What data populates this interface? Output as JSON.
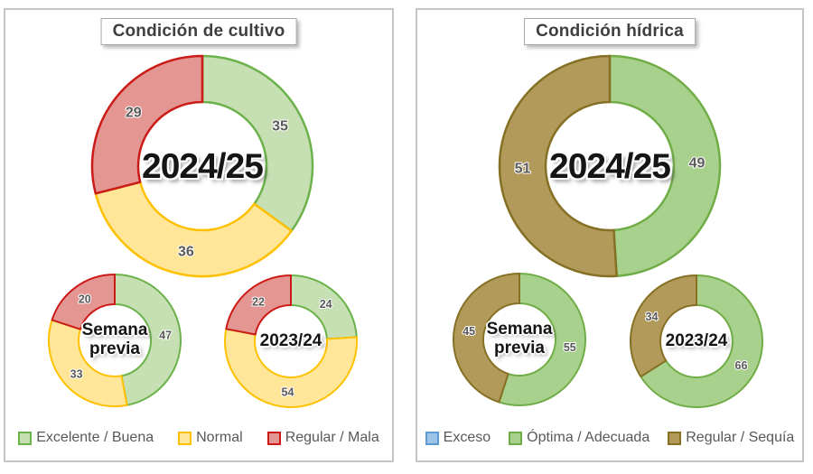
{
  "chart_data": [
    {
      "type": "pie",
      "subtype": "donut-multiples",
      "title": "Condición de cultivo",
      "legend_position": "bottom",
      "categories": [
        "Excelente / Buena",
        "Normal",
        "Regular / Mala"
      ],
      "series_colors": [
        {
          "fill": "#C6E0B4",
          "stroke": "#6BB24A"
        },
        {
          "fill": "#FFE699",
          "stroke": "#FFC000"
        },
        {
          "fill": "#E49693",
          "stroke": "#CB1B17"
        }
      ],
      "donuts": [
        {
          "name": "2024/25",
          "values": [
            35,
            36,
            29
          ]
        },
        {
          "name": "Semana previa",
          "values": [
            47,
            33,
            20
          ]
        },
        {
          "name": "2023/24",
          "values": [
            24,
            54,
            22
          ]
        }
      ]
    },
    {
      "type": "pie",
      "subtype": "donut-multiples",
      "title": "Condición hídrica",
      "legend_position": "bottom",
      "categories": [
        "Exceso",
        "Óptima / Adecuada",
        "Regular / Sequía"
      ],
      "series_colors": [
        {
          "fill": "#9DC3E6",
          "stroke": "#5B9BD5"
        },
        {
          "fill": "#A9D18E",
          "stroke": "#70AD47"
        },
        {
          "fill": "#B29A5B",
          "stroke": "#857024"
        }
      ],
      "donuts": [
        {
          "name": "2024/25",
          "values": [
            0,
            49,
            51
          ]
        },
        {
          "name": "Semana previa",
          "values": [
            0,
            55,
            45
          ]
        },
        {
          "name": "2023/24",
          "values": [
            0,
            66,
            34
          ]
        }
      ]
    }
  ]
}
